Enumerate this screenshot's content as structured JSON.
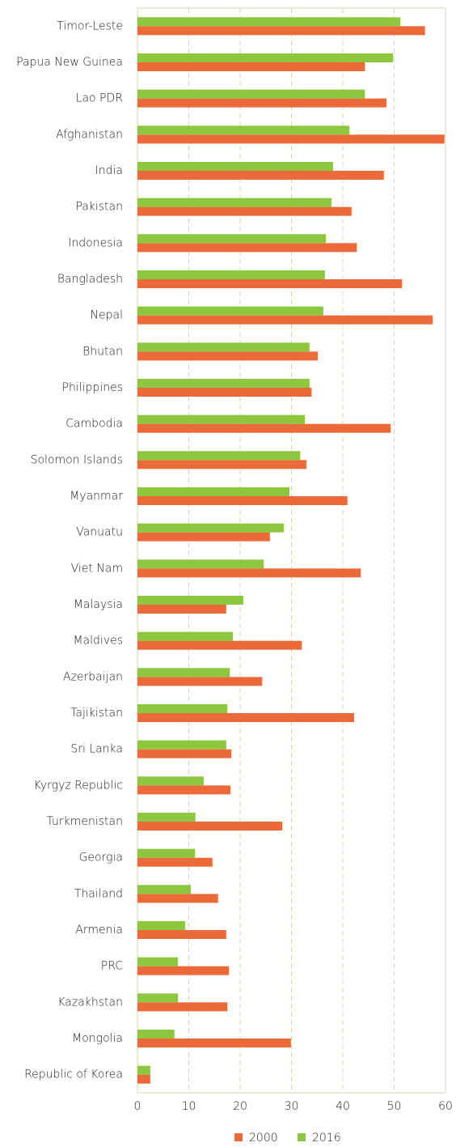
{
  "chart_data": {
    "type": "bar",
    "orientation": "horizontal",
    "categories": [
      "Timor-Leste",
      "Papua New Guinea",
      "Lao PDR",
      "Afghanistan",
      "India",
      "Pakistan",
      "Indonesia",
      "Bangladesh",
      "Nepal",
      "Bhutan",
      "Philippines",
      "Cambodia",
      "Solomon Islands",
      "Myanmar",
      "Vanuatu",
      "Viet Nam",
      "Malaysia",
      "Maldives",
      "Azerbaijan",
      "Tajikistan",
      "Sri Lanka",
      "Kyrgyz Republic",
      "Turkmenistan",
      "Georgia",
      "Thailand",
      "Armenia",
      "PRC",
      "Kazakhstan",
      "Mongolia",
      "Republic of Korea"
    ],
    "series": [
      {
        "name": "2000",
        "color": "#ec6a3a",
        "values": [
          56.0,
          44.3,
          48.5,
          59.8,
          48.0,
          41.7,
          42.7,
          51.5,
          57.5,
          35.1,
          33.9,
          49.3,
          32.9,
          40.9,
          25.8,
          43.5,
          17.3,
          32.0,
          24.3,
          42.2,
          18.3,
          18.1,
          28.2,
          14.6,
          15.7,
          17.3,
          17.8,
          17.5,
          29.9,
          2.5
        ]
      },
      {
        "name": "2016",
        "color": "#8dc63f",
        "values": [
          51.2,
          49.8,
          44.3,
          41.3,
          38.1,
          37.8,
          36.7,
          36.5,
          36.2,
          33.5,
          33.5,
          32.6,
          31.7,
          29.6,
          28.5,
          24.6,
          20.6,
          18.6,
          18.0,
          17.5,
          17.3,
          12.9,
          11.3,
          11.2,
          10.4,
          9.3,
          7.9,
          7.9,
          7.2,
          2.5
        ]
      }
    ],
    "xlim": [
      0,
      60
    ],
    "xticks": [
      0,
      10,
      20,
      30,
      40,
      50,
      60
    ],
    "grid": true,
    "legend": "bottom"
  }
}
